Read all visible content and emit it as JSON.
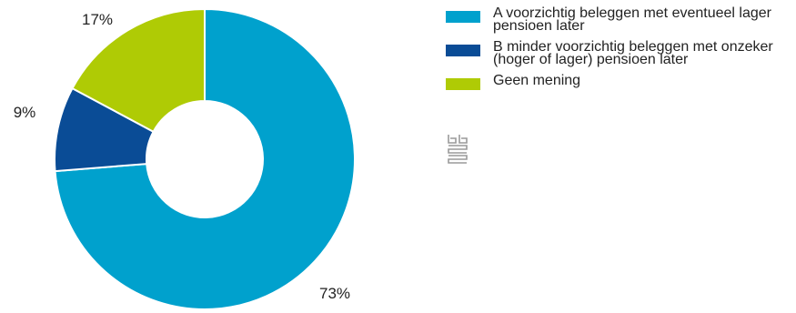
{
  "chart_data": {
    "type": "pie",
    "donut": true,
    "categories": [
      "A voorzichtig beleggen met eventueel lager pensioen later",
      "B minder voorzichtig beleggen met onzeker (hoger of lager) pensioen later",
      "Geen mening"
    ],
    "values": [
      73,
      9,
      17
    ],
    "labels": [
      "73%",
      "9%",
      "17%"
    ],
    "colors": [
      "#00a1cd",
      "#0a4c96",
      "#afcb05"
    ],
    "legend_position": "right"
  },
  "legend": {
    "items": [
      {
        "label": "A voorzichtig beleggen met eventueel lager pensioen later",
        "color": "#00a1cd"
      },
      {
        "label": "B minder voorzichtig beleggen met onzeker (hoger of lager) pensioen later",
        "color": "#0a4c96"
      },
      {
        "label": "Geen mening",
        "color": "#afcb05"
      }
    ]
  },
  "logo": {
    "icon": "cbs-logo-icon"
  }
}
